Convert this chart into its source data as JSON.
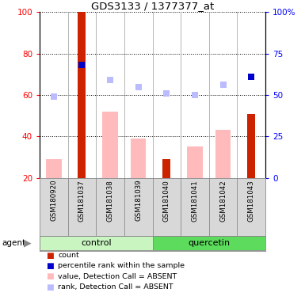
{
  "title": "GDS3133 / 1377377_at",
  "samples": [
    "GSM180920",
    "GSM181037",
    "GSM181038",
    "GSM181039",
    "GSM181040",
    "GSM181041",
    "GSM181042",
    "GSM181043"
  ],
  "count_values": [
    null,
    100,
    null,
    null,
    29,
    null,
    null,
    51
  ],
  "percentile_rank_values": [
    null,
    68,
    null,
    null,
    null,
    null,
    null,
    61
  ],
  "value_absent": [
    29,
    null,
    52,
    39,
    null,
    35,
    43,
    null
  ],
  "rank_absent": [
    49,
    null,
    59,
    55,
    51,
    50,
    56,
    null
  ],
  "ylim_left": [
    20,
    100
  ],
  "ylim_right": [
    0,
    100
  ],
  "yticks_left": [
    20,
    40,
    60,
    80,
    100
  ],
  "yticks_right": [
    0,
    25,
    50,
    75,
    100
  ],
  "ytick_labels_right": [
    "0",
    "25",
    "50",
    "75",
    "100%"
  ],
  "count_color": "#cc2200",
  "percentile_color": "#0000cc",
  "value_absent_color": "#ffbbbb",
  "rank_absent_color": "#bbbbff",
  "control_color_light": "#c8f5c0",
  "control_color": "#c8f5c0",
  "quercetin_color": "#5cdb5c",
  "sample_bg": "#d8d8d8",
  "plot_bg": "#ffffff",
  "group_bar_height": 0.038
}
